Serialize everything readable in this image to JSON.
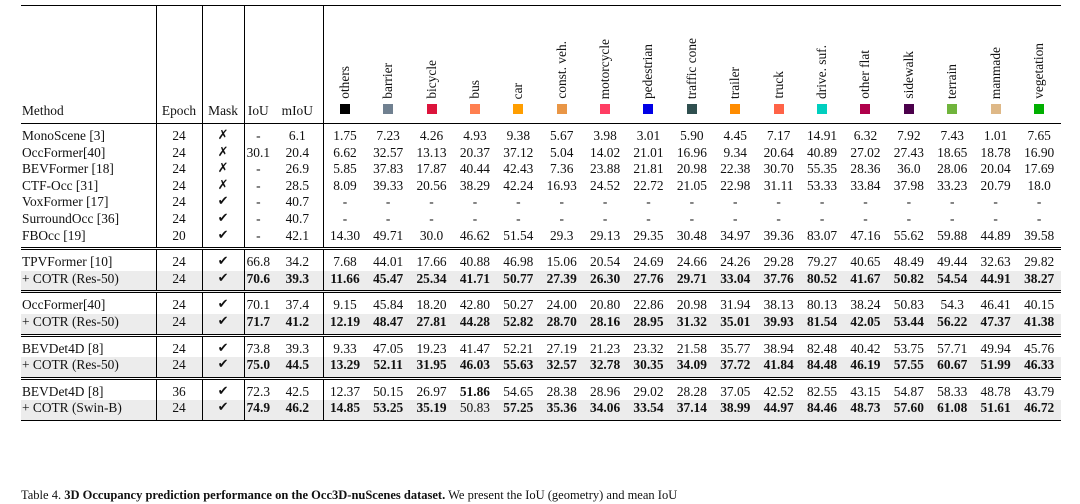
{
  "header": {
    "columns": [
      "Method",
      "Epoch",
      "Mask",
      "IoU",
      "mIoU"
    ],
    "classes": [
      {
        "name": "others",
        "color": "#000000"
      },
      {
        "name": "barrier",
        "color": "#708090"
      },
      {
        "name": "bicycle",
        "color": "#dc143c"
      },
      {
        "name": "bus",
        "color": "#ff7f50"
      },
      {
        "name": "car",
        "color": "#ff9e00"
      },
      {
        "name": "const. veh.",
        "color": "#e99646"
      },
      {
        "name": "motorcycle",
        "color": "#ff3d63"
      },
      {
        "name": "pedestrian",
        "color": "#0000e6"
      },
      {
        "name": "traffic cone",
        "color": "#2f4f4f"
      },
      {
        "name": "trailer",
        "color": "#ff8c00"
      },
      {
        "name": "truck",
        "color": "#ff6347"
      },
      {
        "name": "drive. suf.",
        "color": "#00cfbf"
      },
      {
        "name": "other flat",
        "color": "#af004b"
      },
      {
        "name": "sidewalk",
        "color": "#4b004b"
      },
      {
        "name": "terrain",
        "color": "#70b43c"
      },
      {
        "name": "manmade",
        "color": "#deb887"
      },
      {
        "name": "vegetation",
        "color": "#00af00"
      }
    ]
  },
  "groups": [
    {
      "rows": [
        {
          "cells": [
            "MonoScene [3]",
            "24",
            "✗",
            "-",
            "6.1",
            "1.75",
            "7.23",
            "4.26",
            "4.93",
            "9.38",
            "5.67",
            "3.98",
            "3.01",
            "5.90",
            "4.45",
            "7.17",
            "14.91",
            "6.32",
            "7.92",
            "7.43",
            "1.01",
            "7.65"
          ]
        },
        {
          "cells": [
            "OccFormer[40]",
            "24",
            "✗",
            "30.1",
            "20.4",
            "6.62",
            "32.57",
            "13.13",
            "20.37",
            "37.12",
            "5.04",
            "14.02",
            "21.01",
            "16.96",
            "9.34",
            "20.64",
            "40.89",
            "27.02",
            "27.43",
            "18.65",
            "18.78",
            "16.90"
          ]
        },
        {
          "cells": [
            "BEVFormer [18]",
            "24",
            "✗",
            "-",
            "26.9",
            "5.85",
            "37.83",
            "17.87",
            "40.44",
            "42.43",
            "7.36",
            "23.88",
            "21.81",
            "20.98",
            "22.38",
            "30.70",
            "55.35",
            "28.36",
            "36.0",
            "28.06",
            "20.04",
            "17.69"
          ]
        },
        {
          "cells": [
            "CTF-Occ [31]",
            "24",
            "✗",
            "-",
            "28.5",
            "8.09",
            "39.33",
            "20.56",
            "38.29",
            "42.24",
            "16.93",
            "24.52",
            "22.72",
            "21.05",
            "22.98",
            "31.11",
            "53.33",
            "33.84",
            "37.98",
            "33.23",
            "20.79",
            "18.0"
          ]
        },
        {
          "cells": [
            "VoxFormer [17]",
            "24",
            "✔",
            "-",
            "40.7",
            "-",
            "-",
            "-",
            "-",
            "-",
            "-",
            "-",
            "-",
            "-",
            "-",
            "-",
            "-",
            "-",
            "-",
            "-",
            "-",
            "-"
          ]
        },
        {
          "cells": [
            "SurroundOcc [36]",
            "24",
            "✔",
            "-",
            "40.7",
            "-",
            "-",
            "-",
            "-",
            "-",
            "-",
            "-",
            "-",
            "-",
            "-",
            "-",
            "-",
            "-",
            "-",
            "-",
            "-",
            "-"
          ]
        },
        {
          "cells": [
            "FBOcc [19]",
            "20",
            "✔",
            "-",
            "42.1",
            "14.30",
            "49.71",
            "30.0",
            "46.62",
            "51.54",
            "29.3",
            "29.13",
            "29.35",
            "30.48",
            "34.97",
            "39.36",
            "83.07",
            "47.16",
            "55.62",
            "59.88",
            "44.89",
            "39.58"
          ]
        }
      ]
    },
    {
      "rows": [
        {
          "cells": [
            "TPVFormer [10]",
            "24",
            "✔",
            "66.8",
            "34.2",
            "7.68",
            "44.01",
            "17.66",
            "40.88",
            "46.98",
            "15.06",
            "20.54",
            "24.69",
            "24.66",
            "24.26",
            "29.28",
            "79.27",
            "40.65",
            "48.49",
            "49.44",
            "32.63",
            "29.82"
          ]
        },
        {
          "cells": [
            "+ COTR (Res-50)",
            "24",
            "✔",
            "70.6",
            "39.3",
            "11.66",
            "45.47",
            "25.34",
            "41.71",
            "50.77",
            "27.39",
            "26.30",
            "27.76",
            "29.71",
            "33.04",
            "37.76",
            "80.52",
            "41.67",
            "50.82",
            "54.54",
            "44.91",
            "38.27"
          ],
          "shaded": true,
          "bold": [
            3,
            4,
            5,
            6,
            7,
            8,
            9,
            10,
            11,
            12,
            13,
            14,
            15,
            16,
            17,
            18,
            19,
            20,
            21
          ]
        }
      ]
    },
    {
      "rows": [
        {
          "cells": [
            "OccFormer[40]",
            "24",
            "✔",
            "70.1",
            "37.4",
            "9.15",
            "45.84",
            "18.20",
            "42.80",
            "50.27",
            "24.00",
            "20.80",
            "22.86",
            "20.98",
            "31.94",
            "38.13",
            "80.13",
            "38.24",
            "50.83",
            "54.3",
            "46.41",
            "40.15"
          ]
        },
        {
          "cells": [
            "+ COTR (Res-50)",
            "24",
            "✔",
            "71.7",
            "41.2",
            "12.19",
            "48.47",
            "27.81",
            "44.28",
            "52.82",
            "28.70",
            "28.16",
            "28.95",
            "31.32",
            "35.01",
            "39.93",
            "81.54",
            "42.05",
            "53.44",
            "56.22",
            "47.37",
            "41.38"
          ],
          "shaded": true,
          "bold": [
            3,
            4,
            5,
            6,
            7,
            8,
            9,
            10,
            11,
            12,
            13,
            14,
            15,
            16,
            17,
            18,
            19,
            20,
            21
          ]
        }
      ]
    },
    {
      "rows": [
        {
          "cells": [
            "BEVDet4D [8]",
            "24",
            "✔",
            "73.8",
            "39.3",
            "9.33",
            "47.05",
            "19.23",
            "41.47",
            "52.21",
            "27.19",
            "21.23",
            "23.32",
            "21.58",
            "35.77",
            "38.94",
            "82.48",
            "40.42",
            "53.75",
            "57.71",
            "49.94",
            "45.76"
          ]
        },
        {
          "cells": [
            "+ COTR (Res-50)",
            "24",
            "✔",
            "75.0",
            "44.5",
            "13.29",
            "52.11",
            "31.95",
            "46.03",
            "55.63",
            "32.57",
            "32.78",
            "30.35",
            "34.09",
            "37.72",
            "41.84",
            "84.48",
            "46.19",
            "57.55",
            "60.67",
            "51.99",
            "46.33"
          ],
          "shaded": true,
          "bold": [
            3,
            4,
            5,
            6,
            7,
            8,
            9,
            10,
            11,
            12,
            13,
            14,
            15,
            16,
            17,
            18,
            19,
            20,
            21
          ]
        }
      ]
    },
    {
      "rows": [
        {
          "cells": [
            "BEVDet4D [8]",
            "36",
            "✔",
            "72.3",
            "42.5",
            "12.37",
            "50.15",
            "26.97",
            "51.86",
            "54.65",
            "28.38",
            "28.96",
            "29.02",
            "28.28",
            "37.05",
            "42.52",
            "82.55",
            "43.15",
            "54.87",
            "58.33",
            "48.78",
            "43.79"
          ],
          "bold": [
            8
          ]
        },
        {
          "cells": [
            "+ COTR (Swin-B)",
            "24",
            "✔",
            "74.9",
            "46.2",
            "14.85",
            "53.25",
            "35.19",
            "50.83",
            "57.25",
            "35.36",
            "34.06",
            "33.54",
            "37.14",
            "38.99",
            "44.97",
            "84.46",
            "48.73",
            "57.60",
            "61.08",
            "51.61",
            "46.72"
          ],
          "shaded": true,
          "bold": [
            3,
            4,
            5,
            6,
            7,
            9,
            10,
            11,
            12,
            13,
            14,
            15,
            16,
            17,
            18,
            19,
            20,
            21
          ]
        }
      ]
    }
  ],
  "caption": {
    "label": "Table 4.",
    "title": "3D Occupancy prediction performance on the Occ3D-nuScenes dataset.",
    "text": "We present the IoU (geometry) and mean IoU"
  }
}
